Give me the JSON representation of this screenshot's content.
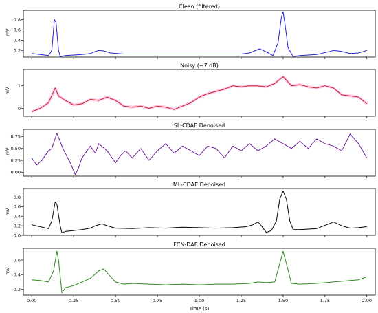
{
  "chart_data": [
    {
      "type": "line",
      "title": "Clean (filtered)",
      "ylabel": "mV",
      "xlabel": "",
      "color": "#1f1fd6",
      "xlim": [
        -0.05,
        2.05
      ],
      "ylim": [
        0.07,
        0.98
      ],
      "yticks": [
        0.2,
        0.4,
        0.6,
        0.8
      ],
      "ytick_labels": [
        "0.2",
        "0.4",
        "0.6",
        "0.8"
      ],
      "series": [
        {
          "name": "",
          "x": [
            0.0,
            0.05,
            0.1,
            0.12,
            0.135,
            0.145,
            0.16,
            0.17,
            0.2,
            0.25,
            0.3,
            0.35,
            0.38,
            0.4,
            0.43,
            0.47,
            0.55,
            0.7,
            0.9,
            1.1,
            1.25,
            1.3,
            1.33,
            1.36,
            1.4,
            1.44,
            1.47,
            1.49,
            1.5,
            1.51,
            1.53,
            1.56,
            1.6,
            1.7,
            1.78,
            1.8,
            1.85,
            1.9,
            1.95,
            2.0
          ],
          "values": [
            0.14,
            0.12,
            0.1,
            0.2,
            0.8,
            0.75,
            0.2,
            0.08,
            0.1,
            0.11,
            0.12,
            0.14,
            0.18,
            0.2,
            0.19,
            0.15,
            0.13,
            0.13,
            0.13,
            0.13,
            0.13,
            0.15,
            0.19,
            0.23,
            0.17,
            0.1,
            0.35,
            0.85,
            0.95,
            0.75,
            0.25,
            0.08,
            0.1,
            0.12,
            0.18,
            0.2,
            0.18,
            0.14,
            0.15,
            0.2
          ]
        }
      ]
    },
    {
      "type": "line",
      "title": "Noisy (~7 dB)",
      "ylabel": "mV",
      "xlabel": "",
      "color": "#c0281c",
      "band_color": "#ff6ad5",
      "xlim": [
        -0.05,
        2.05
      ],
      "ylim": [
        -0.35,
        1.72
      ],
      "yticks": [
        0,
        1
      ],
      "ytick_labels": [
        "0",
        "1"
      ],
      "series": [
        {
          "name": "",
          "x": [
            0.0,
            0.05,
            0.1,
            0.14,
            0.16,
            0.2,
            0.25,
            0.3,
            0.35,
            0.4,
            0.45,
            0.5,
            0.55,
            0.6,
            0.65,
            0.7,
            0.75,
            0.8,
            0.85,
            0.9,
            0.95,
            1.0,
            1.05,
            1.1,
            1.15,
            1.2,
            1.25,
            1.3,
            1.35,
            1.4,
            1.45,
            1.5,
            1.55,
            1.6,
            1.65,
            1.7,
            1.75,
            1.8,
            1.85,
            1.9,
            1.95,
            2.0
          ],
          "values": [
            -0.15,
            0.0,
            0.25,
            0.9,
            0.55,
            0.35,
            0.15,
            0.2,
            0.4,
            0.35,
            0.5,
            0.35,
            0.1,
            0.05,
            0.1,
            0.0,
            0.1,
            0.05,
            -0.05,
            0.1,
            0.25,
            0.5,
            0.65,
            0.75,
            0.85,
            1.0,
            0.95,
            1.0,
            1.0,
            0.95,
            1.1,
            1.4,
            1.0,
            1.05,
            0.95,
            0.9,
            1.0,
            0.9,
            0.6,
            0.55,
            0.5,
            0.2
          ]
        }
      ]
    },
    {
      "type": "line",
      "title": "SL-CDAE Denoised",
      "ylabel": "mV",
      "xlabel": "",
      "color": "#6a1b9a",
      "xlim": [
        -0.05,
        2.05
      ],
      "ylim": [
        -0.08,
        0.9
      ],
      "yticks": [
        0.0,
        0.25,
        0.5,
        0.75
      ],
      "ytick_labels": [
        "0.00",
        "0.25",
        "0.50",
        "0.75"
      ],
      "series": [
        {
          "name": "",
          "x": [
            0.0,
            0.03,
            0.06,
            0.1,
            0.12,
            0.15,
            0.18,
            0.2,
            0.23,
            0.26,
            0.28,
            0.3,
            0.35,
            0.38,
            0.4,
            0.45,
            0.5,
            0.53,
            0.56,
            0.6,
            0.65,
            0.7,
            0.75,
            0.8,
            0.85,
            0.9,
            0.95,
            1.0,
            1.05,
            1.1,
            1.15,
            1.2,
            1.25,
            1.3,
            1.35,
            1.4,
            1.45,
            1.5,
            1.55,
            1.6,
            1.65,
            1.7,
            1.75,
            1.8,
            1.85,
            1.9,
            1.95,
            2.0
          ],
          "values": [
            0.3,
            0.15,
            0.25,
            0.45,
            0.5,
            0.82,
            0.55,
            0.4,
            0.2,
            -0.05,
            0.1,
            0.3,
            0.55,
            0.4,
            0.6,
            0.45,
            0.2,
            0.35,
            0.45,
            0.3,
            0.5,
            0.25,
            0.45,
            0.6,
            0.4,
            0.55,
            0.45,
            0.35,
            0.55,
            0.5,
            0.3,
            0.55,
            0.45,
            0.6,
            0.45,
            0.55,
            0.7,
            0.6,
            0.5,
            0.65,
            0.5,
            0.7,
            0.6,
            0.55,
            0.45,
            0.8,
            0.6,
            0.3
          ]
        }
      ]
    },
    {
      "type": "line",
      "title": "ML-CDAE Denoised",
      "ylabel": "mV",
      "xlabel": "",
      "color": "#000000",
      "xlim": [
        -0.05,
        2.05
      ],
      "ylim": [
        0.0,
        0.98
      ],
      "yticks": [
        0.0,
        0.2,
        0.4,
        0.6,
        0.8
      ],
      "ytick_labels": [
        "0.0",
        "0.2",
        "0.4",
        "0.6",
        "0.8"
      ],
      "series": [
        {
          "name": "",
          "x": [
            0.0,
            0.05,
            0.1,
            0.12,
            0.14,
            0.15,
            0.17,
            0.18,
            0.2,
            0.25,
            0.3,
            0.35,
            0.38,
            0.42,
            0.45,
            0.5,
            0.6,
            0.7,
            0.8,
            0.9,
            1.0,
            1.1,
            1.2,
            1.28,
            1.32,
            1.35,
            1.37,
            1.4,
            1.43,
            1.46,
            1.48,
            1.5,
            1.52,
            1.54,
            1.56,
            1.6,
            1.7,
            1.78,
            1.8,
            1.85,
            1.9,
            1.95,
            2.0
          ],
          "values": [
            0.22,
            0.18,
            0.14,
            0.3,
            0.7,
            0.65,
            0.2,
            0.05,
            0.08,
            0.1,
            0.12,
            0.15,
            0.2,
            0.24,
            0.2,
            0.15,
            0.14,
            0.16,
            0.15,
            0.17,
            0.16,
            0.15,
            0.16,
            0.18,
            0.22,
            0.28,
            0.2,
            0.06,
            0.1,
            0.3,
            0.75,
            0.93,
            0.75,
            0.3,
            0.12,
            0.12,
            0.14,
            0.25,
            0.28,
            0.2,
            0.15,
            0.16,
            0.18
          ]
        }
      ]
    },
    {
      "type": "line",
      "title": "FCN-DAE Denoised",
      "ylabel": "mV",
      "xlabel": "Time (s)",
      "color": "#2a8a1a",
      "xlim": [
        -0.05,
        2.05
      ],
      "ylim": [
        0.12,
        0.76
      ],
      "yticks": [
        0.2,
        0.4,
        0.6
      ],
      "ytick_labels": [
        "0.2",
        "0.4",
        "0.6"
      ],
      "xticks": [
        0.0,
        0.25,
        0.5,
        0.75,
        1.0,
        1.25,
        1.5,
        1.75,
        2.0
      ],
      "xtick_labels": [
        "0.00",
        "0.25",
        "0.50",
        "0.75",
        "1.00",
        "1.25",
        "1.50",
        "1.75",
        "2.00"
      ],
      "series": [
        {
          "name": "",
          "x": [
            0.0,
            0.05,
            0.1,
            0.13,
            0.15,
            0.16,
            0.18,
            0.2,
            0.25,
            0.3,
            0.35,
            0.4,
            0.43,
            0.46,
            0.5,
            0.55,
            0.6,
            0.7,
            0.8,
            0.9,
            1.0,
            1.1,
            1.2,
            1.3,
            1.35,
            1.4,
            1.45,
            1.48,
            1.5,
            1.52,
            1.55,
            1.6,
            1.7,
            1.8,
            1.9,
            1.95,
            2.0
          ],
          "values": [
            0.33,
            0.32,
            0.3,
            0.45,
            0.72,
            0.6,
            0.15,
            0.22,
            0.25,
            0.3,
            0.35,
            0.45,
            0.48,
            0.4,
            0.3,
            0.27,
            0.28,
            0.27,
            0.26,
            0.27,
            0.26,
            0.27,
            0.27,
            0.28,
            0.3,
            0.29,
            0.3,
            0.55,
            0.72,
            0.55,
            0.28,
            0.27,
            0.28,
            0.3,
            0.32,
            0.33,
            0.37
          ]
        }
      ]
    }
  ]
}
